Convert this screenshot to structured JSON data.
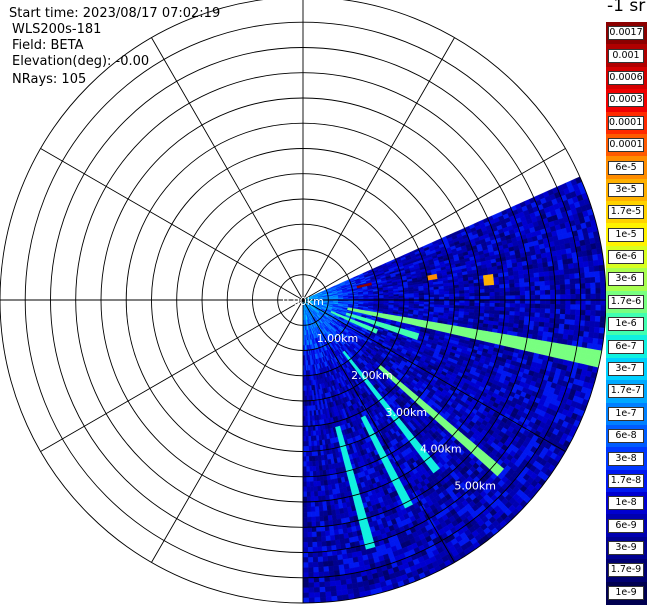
{
  "header": {
    "start_time": "Start time: 2023/08/17 07:02:19",
    "instrument": "WLS200s-181",
    "field": "Field: BETA",
    "elevation": "Elevation(deg): -0.00",
    "nrays": "NRays: 105"
  },
  "colorbar": {
    "title": "-1 sr",
    "labels": [
      "0.0017",
      "0.001",
      "0.0006",
      "0.0003",
      "0.00017",
      "0.0001",
      "6e-5",
      "3e-5",
      "1.7e-5",
      "1e-5",
      "6e-6",
      "3e-6",
      "1.7e-6",
      "1e-6",
      "6e-7",
      "3e-7",
      "1.7e-7",
      "1e-7",
      "6e-8",
      "3e-8",
      "1.7e-8",
      "1e-8",
      "6e-9",
      "3e-9",
      "1.7e-9",
      "1e-9"
    ],
    "colors": [
      "#8b0000",
      "#b00000",
      "#d40000",
      "#f00000",
      "#ff2a00",
      "#ff5a00",
      "#ff8c00",
      "#ffb000",
      "#ffd200",
      "#fff200",
      "#d8ff20",
      "#a8ff50",
      "#78ff80",
      "#40ffb0",
      "#10f0e0",
      "#00d0ff",
      "#00a8ff",
      "#0080ff",
      "#005cff",
      "#0038ff",
      "#0018f0",
      "#0000d0",
      "#0000b0",
      "#000090",
      "#000070",
      "#000050"
    ]
  },
  "chart_data": {
    "type": "heatmap",
    "projection": "polar-ppi",
    "range_ring_labels": [
      "0.00km",
      "1.00km",
      "2.00km",
      "3.00km",
      "4.00km",
      "5.00km"
    ],
    "range_rings_km": [
      0.5,
      1,
      1.5,
      2,
      2.5,
      3,
      3.5,
      4,
      4.5,
      5,
      5.5,
      6
    ],
    "max_range_km": 6,
    "sector_azimuth_deg": [
      90,
      180
    ],
    "nrays": 105,
    "value_range": [
      1e-09,
      0.0017
    ],
    "scale": "log",
    "grid": true,
    "features": [
      {
        "azimuth_deg": 101,
        "range_km": [
          0.9,
          6.0
        ],
        "value": 1.7e-06
      },
      {
        "azimuth_deg": 108,
        "range_km": [
          0.9,
          2.4
        ],
        "value": 1e-06
      },
      {
        "azimuth_deg": 113,
        "range_km": [
          0.6,
          1.6
        ],
        "value": 1e-06
      },
      {
        "azimuth_deg": 131,
        "range_km": [
          2.0,
          5.2
        ],
        "value": 1.7e-06
      },
      {
        "azimuth_deg": 142,
        "range_km": [
          1.3,
          4.3
        ],
        "value": 6e-07
      },
      {
        "azimuth_deg": 153,
        "range_km": [
          2.6,
          4.6
        ],
        "value": 6e-07
      },
      {
        "azimuth_deg": 165,
        "range_km": [
          2.6,
          5.1
        ],
        "value": 6e-07
      },
      {
        "azimuth_deg": 77,
        "range_km": [
          1.1,
          1.4
        ],
        "value": 0.0017
      },
      {
        "azimuth_deg": 80,
        "range_km": [
          2.5,
          2.7
        ],
        "value": 6e-05
      },
      {
        "azimuth_deg": 84,
        "range_km": [
          3.6,
          3.8
        ],
        "value": 3e-05
      }
    ]
  }
}
